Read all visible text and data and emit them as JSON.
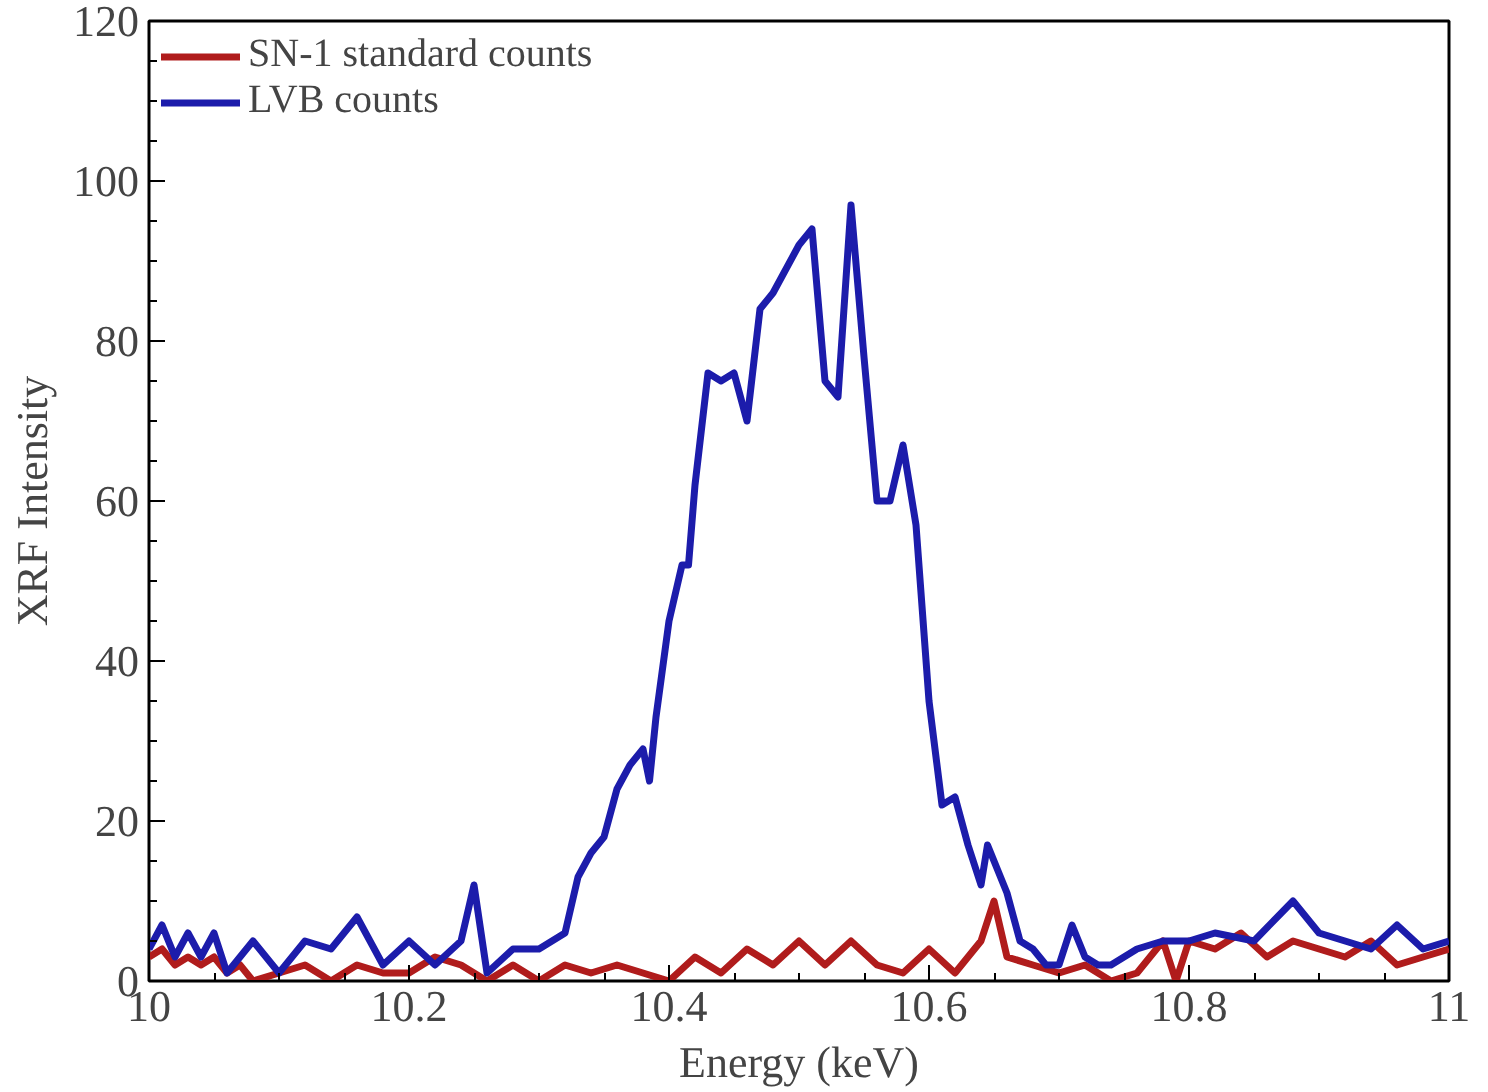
{
  "chart_data": {
    "type": "line",
    "xlabel": "Energy (keV)",
    "ylabel": "XRF Intensity",
    "xlim": [
      10,
      11
    ],
    "ylim": [
      0,
      120
    ],
    "xticks": [
      10,
      10.2,
      10.4,
      10.6,
      10.8,
      11
    ],
    "yticks": [
      0,
      20,
      40,
      60,
      80,
      100,
      120
    ],
    "grid": false,
    "legend": "top left",
    "line_style": "solid",
    "series": [
      {
        "name": "SN-1 standard counts",
        "color": "#b01c1c",
        "x": [
          10,
          10.01,
          10.02,
          10.03,
          10.04,
          10.05,
          10.06,
          10.07,
          10.08,
          10.1,
          10.12,
          10.14,
          10.16,
          10.18,
          10.2,
          10.22,
          10.24,
          10.25,
          10.26,
          10.28,
          10.3,
          10.32,
          10.34,
          10.36,
          10.38,
          10.4,
          10.42,
          10.44,
          10.46,
          10.48,
          10.5,
          10.52,
          10.54,
          10.56,
          10.58,
          10.6,
          10.62,
          10.64,
          10.65,
          10.66,
          10.68,
          10.7,
          10.72,
          10.74,
          10.76,
          10.78,
          10.79,
          10.8,
          10.82,
          10.84,
          10.86,
          10.88,
          10.9,
          10.92,
          10.94,
          10.96,
          10.98,
          11
        ],
        "values": [
          3,
          4,
          2,
          3,
          2,
          3,
          1,
          2,
          0,
          1,
          2,
          0,
          2,
          1,
          1,
          3,
          2,
          1,
          0,
          2,
          0,
          2,
          1,
          2,
          1,
          0,
          3,
          1,
          4,
          2,
          5,
          2,
          5,
          2,
          1,
          4,
          1,
          5,
          10,
          3,
          2,
          1,
          2,
          0,
          1,
          5,
          0,
          5,
          4,
          6,
          3,
          5,
          4,
          3,
          5,
          2,
          3,
          4
        ]
      },
      {
        "name": "LVB counts",
        "color": "#1c1cab",
        "x": [
          10,
          10.01,
          10.02,
          10.03,
          10.04,
          10.05,
          10.06,
          10.08,
          10.1,
          10.12,
          10.14,
          10.16,
          10.18,
          10.2,
          10.22,
          10.24,
          10.25,
          10.26,
          10.28,
          10.3,
          10.32,
          10.33,
          10.34,
          10.35,
          10.36,
          10.37,
          10.38,
          10.385,
          10.39,
          10.4,
          10.41,
          10.415,
          10.42,
          10.43,
          10.44,
          10.45,
          10.46,
          10.47,
          10.48,
          10.5,
          10.51,
          10.52,
          10.53,
          10.54,
          10.55,
          10.56,
          10.57,
          10.58,
          10.59,
          10.6,
          10.61,
          10.62,
          10.63,
          10.64,
          10.645,
          10.66,
          10.67,
          10.68,
          10.69,
          10.7,
          10.71,
          10.72,
          10.73,
          10.74,
          10.76,
          10.78,
          10.8,
          10.82,
          10.85,
          10.88,
          10.9,
          10.92,
          10.94,
          10.96,
          10.98,
          11
        ],
        "values": [
          4,
          7,
          3,
          6,
          3,
          6,
          1,
          5,
          1,
          5,
          4,
          8,
          2,
          5,
          2,
          5,
          12,
          1,
          4,
          4,
          6,
          13,
          16,
          18,
          24,
          27,
          29,
          25,
          33,
          45,
          52,
          52,
          62,
          76,
          75,
          76,
          70,
          84,
          86,
          92,
          94,
          75,
          73,
          97,
          78,
          60,
          60,
          67,
          57,
          35,
          22,
          23,
          17,
          12,
          17,
          11,
          5,
          4,
          2,
          2,
          7,
          3,
          2,
          2,
          4,
          5,
          5,
          6,
          5,
          10,
          6,
          5,
          4,
          7,
          4,
          5
        ]
      }
    ]
  }
}
